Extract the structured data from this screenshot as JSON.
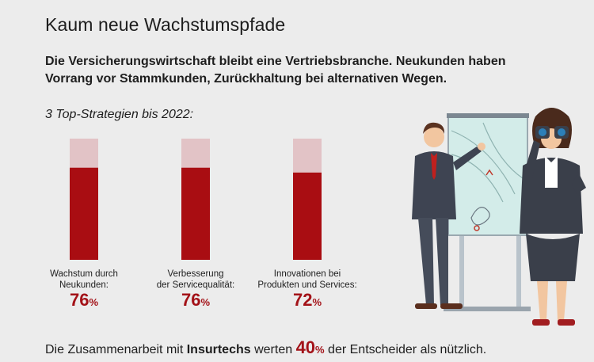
{
  "page": {
    "title": "Kaum neue Wachstumspfade",
    "subtitle": "Die Versicherungswirtschaft bleibt eine Vertriebsbranche. Neukunden haben Vorrang vor Stammkunden, Zurückhaltung bei alternativen Wegen.",
    "section_label": "3 Top-Strategien bis 2022:",
    "footer": {
      "prefix": "Die Zusammenarbeit mit ",
      "bold": "Insurtechs",
      "middle": " werten ",
      "value": "40",
      "unit": "%",
      "suffix": " der Entscheider als nützlich."
    }
  },
  "chart_data": {
    "type": "bar",
    "categories": [
      "Wachstum durch\nNeukunden:",
      "Verbesserung\nder Servicequalität:",
      "Innovationen bei\nProdukten und Services:"
    ],
    "values": [
      76,
      76,
      72
    ],
    "value_labels": [
      "76",
      "76",
      "72"
    ],
    "unit": "%",
    "ylim": [
      0,
      100
    ],
    "grid": false,
    "colors": {
      "fill": "#a90d12",
      "background": "#e2c3c6"
    }
  },
  "illustration": {
    "icons": [
      "businessman",
      "flipchart",
      "businesswoman-binoculars"
    ]
  }
}
